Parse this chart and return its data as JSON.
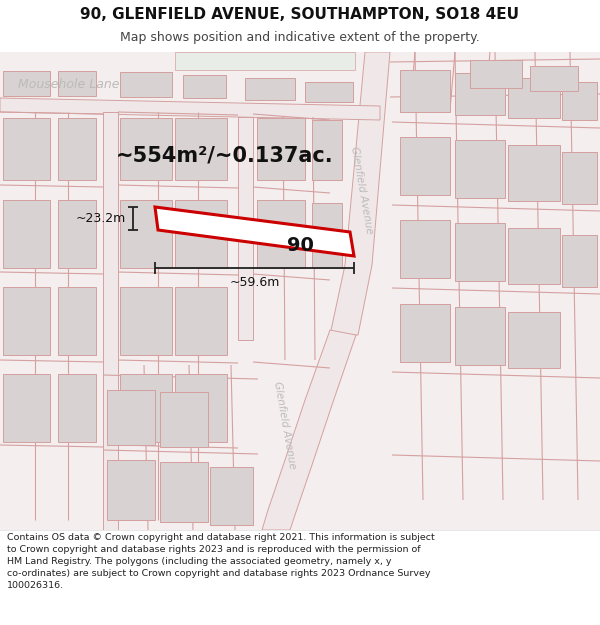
{
  "title": "90, GLENFIELD AVENUE, SOUTHAMPTON, SO18 4EU",
  "subtitle": "Map shows position and indicative extent of the property.",
  "footer": "Contains OS data © Crown copyright and database right 2021. This information is subject\nto Crown copyright and database rights 2023 and is reproduced with the permission of\nHM Land Registry. The polygons (including the associated geometry, namely x, y\nco-ordinates) are subject to Crown copyright and database rights 2023 Ordnance Survey\n100026316.",
  "header_bg": "#ffffff",
  "footer_bg": "#ffffff",
  "map_bg": "#f5eeee",
  "road_fill": "#f0e8e8",
  "line_color": "#d4a0a0",
  "building_fill": "#d8d2d2",
  "building_edge": "#d4a0a0",
  "plot_edge": "#cc0000",
  "plot_fill": "#ffffff",
  "dim_color": "#222222",
  "text_color": "#111111",
  "road_label_color": "#bbbbbb",
  "title_fontsize": 11,
  "subtitle_fontsize": 9,
  "footer_fontsize": 6.8,
  "area_text": "~554m²/~0.137ac.",
  "area_fontsize": 15,
  "width_text": "~59.6m",
  "height_text": "~23.2m",
  "number_text": "90",
  "label_mousehole": "Mousehole Lane",
  "label_glenfield_top": "Glenfield Avenue",
  "label_glenfield_bot": "Glenfield Avenue"
}
